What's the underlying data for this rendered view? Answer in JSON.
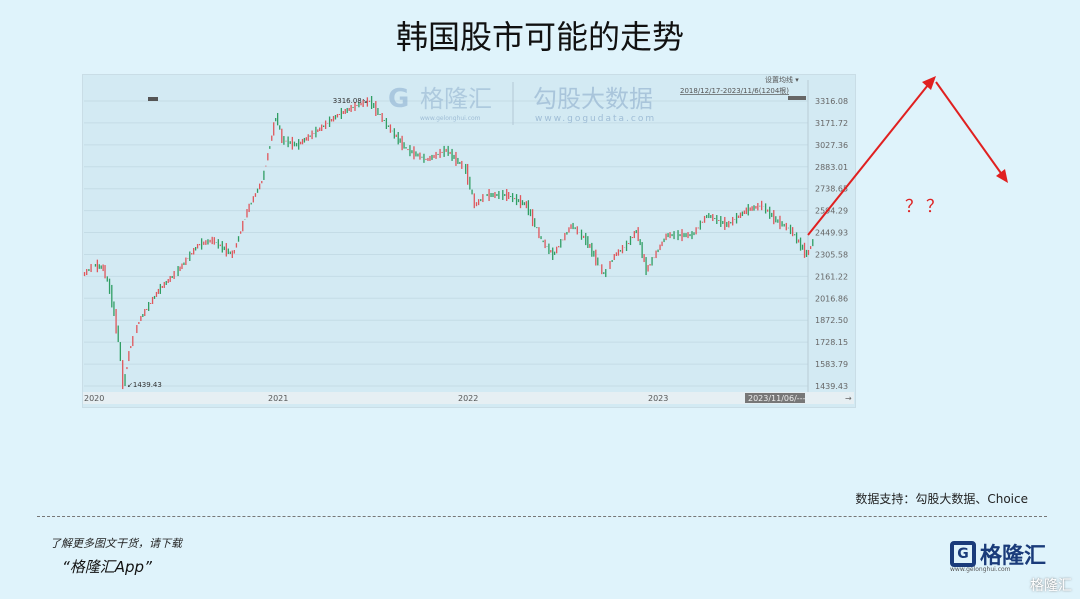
{
  "title": "韩国股市可能的走势",
  "chart": {
    "watermark_brand": "格隆汇",
    "watermark_brand_url": "www.gelonghui.com",
    "watermark_data": "勾股大数据",
    "watermark_data_url": "www.gogudata.com",
    "setting_label": "设置均线",
    "range_label": "2018/12/17-2023/11/6(1204根)",
    "current_date_label": "2023/11/06/---",
    "max_label": "3316.08",
    "min_label": "1439.43",
    "question_marks": "？？",
    "colors": {
      "up": "#e0565b",
      "down": "#2f9e63",
      "arrow": "#e02020"
    }
  },
  "chart_data": {
    "type": "line",
    "x_ticks": [
      "2020",
      "2021",
      "2022",
      "2023"
    ],
    "y_ticks": [
      "3316.08",
      "3171.72",
      "3027.36",
      "2883.01",
      "2738.65",
      "2594.29",
      "2449.93",
      "2305.58",
      "2161.22",
      "2016.86",
      "1872.50",
      "1728.15",
      "1583.79",
      "1439.43"
    ],
    "ylim": [
      1439.43,
      3316.08
    ],
    "grid": true,
    "points": [
      [
        "2020-01-02",
        2170
      ],
      [
        "2020-01-23",
        2236
      ],
      [
        "2020-02-11",
        2216
      ],
      [
        "2020-02-24",
        2072
      ],
      [
        "2020-03-10",
        1742
      ],
      [
        "2020-03-19",
        1439
      ],
      [
        "2020-03-30",
        1676
      ],
      [
        "2020-04-19",
        1874
      ],
      [
        "2020-05-26",
        2072
      ],
      [
        "2020-07-03",
        2203
      ],
      [
        "2020-08-10",
        2368
      ],
      [
        "2020-09-08",
        2400
      ],
      [
        "2020-10-16",
        2302
      ],
      [
        "2020-11-14",
        2598
      ],
      [
        "2020-12-12",
        2796
      ],
      [
        "2021-01-08",
        3224
      ],
      [
        "2021-01-20",
        3059
      ],
      [
        "2021-02-18",
        3026
      ],
      [
        "2021-03-28",
        3125
      ],
      [
        "2021-05-05",
        3224
      ],
      [
        "2021-06-12",
        3290
      ],
      [
        "2021-07-06",
        3316
      ],
      [
        "2021-08-08",
        3158
      ],
      [
        "2021-09-15",
        3000
      ],
      [
        "2021-10-23",
        2928
      ],
      [
        "2021-12-01",
        2994
      ],
      [
        "2022-01-08",
        2862
      ],
      [
        "2022-01-25",
        2630
      ],
      [
        "2022-02-15",
        2697
      ],
      [
        "2022-03-26",
        2697
      ],
      [
        "2022-05-03",
        2630
      ],
      [
        "2022-06-01",
        2400
      ],
      [
        "2022-06-23",
        2302
      ],
      [
        "2022-07-28",
        2500
      ],
      [
        "2022-08-26",
        2400
      ],
      [
        "2022-09-30",
        2170
      ],
      [
        "2022-10-20",
        2302
      ],
      [
        "2022-11-13",
        2368
      ],
      [
        "2022-12-01",
        2466
      ],
      [
        "2022-12-20",
        2203
      ],
      [
        "2023-01-28",
        2433
      ],
      [
        "2023-03-17",
        2433
      ],
      [
        "2023-04-15",
        2565
      ],
      [
        "2023-05-23",
        2500
      ],
      [
        "2023-06-30",
        2598
      ],
      [
        "2023-07-29",
        2630
      ],
      [
        "2023-08-26",
        2530
      ],
      [
        "2023-09-24",
        2466
      ],
      [
        "2023-10-24",
        2302
      ],
      [
        "2023-11-06",
        2400
      ]
    ]
  },
  "footer": {
    "source": "数据支持：勾股大数据、Choice",
    "download_hint": "了解更多图文干货，请下载",
    "app_name": "“格隆汇App”",
    "logo_text": "格隆汇",
    "logo_url": "www.gelonghui.com",
    "watermark": "格隆汇"
  }
}
